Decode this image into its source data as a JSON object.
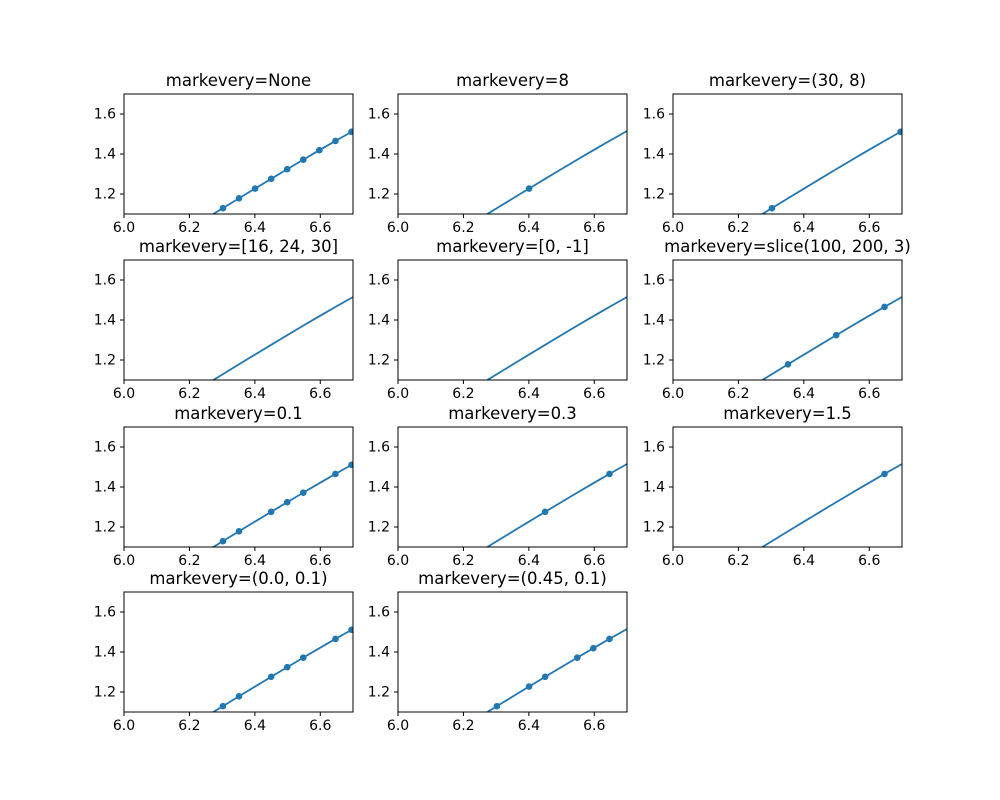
{
  "figure": {
    "background": "#ffffff",
    "axes_edge_color": "#000000",
    "text_color": "#000000"
  },
  "chart_data": {
    "type": "line",
    "description": "matplotlib markevery demo, zoomed view: same line plotted in 11 subplots with different markevery settings",
    "xlim": [
      6.0,
      6.7
    ],
    "ylim": [
      1.1,
      1.7
    ],
    "xticks": [
      6.0,
      6.2,
      6.4,
      6.6
    ],
    "yticks": [
      1.2,
      1.4,
      1.6
    ],
    "xtick_labels": [
      "6.0",
      "6.2",
      "6.4",
      "6.6"
    ],
    "ytick_labels": [
      "1.2",
      "1.4",
      "1.6"
    ],
    "grid": false,
    "legend": null,
    "line_color": "#1f77b4",
    "marker": "circle",
    "curve": [
      [
        6.25,
        1.0768
      ],
      [
        6.275,
        1.1018
      ],
      [
        6.3,
        1.1268
      ],
      [
        6.325,
        1.1518
      ],
      [
        6.35,
        1.1768
      ],
      [
        6.375,
        1.2017
      ],
      [
        6.4,
        1.2265
      ],
      [
        6.425,
        1.2513
      ],
      [
        6.45,
        1.276
      ],
      [
        6.475,
        1.3006
      ],
      [
        6.5,
        1.3251
      ],
      [
        6.525,
        1.3495
      ],
      [
        6.55,
        1.3737
      ],
      [
        6.575,
        1.3977
      ],
      [
        6.6,
        1.4215
      ],
      [
        6.625,
        1.4452
      ],
      [
        6.65,
        1.4687
      ],
      [
        6.675,
        1.4919
      ],
      [
        6.7,
        1.5149
      ]
    ],
    "subplots": [
      {
        "row": 0,
        "col": 0,
        "title": "markevery=None",
        "markers": [
          [
            6.3024,
            1.1292
          ],
          [
            6.3515,
            1.1783
          ],
          [
            6.4007,
            1.2272
          ],
          [
            6.4498,
            1.2758
          ],
          [
            6.4989,
            1.3241
          ],
          [
            6.5481,
            1.3718
          ],
          [
            6.5972,
            1.4189
          ],
          [
            6.6464,
            1.4653
          ],
          [
            6.6955,
            1.5108
          ]
        ]
      },
      {
        "row": 0,
        "col": 1,
        "title": "markevery=8",
        "markers": [
          [
            6.4007,
            1.2272
          ]
        ]
      },
      {
        "row": 0,
        "col": 2,
        "title": "markevery=(30, 8)",
        "markers": [
          [
            6.3024,
            1.1292
          ],
          [
            6.6955,
            1.5108
          ]
        ]
      },
      {
        "row": 1,
        "col": 0,
        "title": "markevery=[16, 24, 30]",
        "markers": []
      },
      {
        "row": 1,
        "col": 1,
        "title": "markevery=[0, -1]",
        "markers": []
      },
      {
        "row": 1,
        "col": 2,
        "title": "markevery=slice(100, 200, 3)",
        "markers": [
          [
            6.3515,
            1.1783
          ],
          [
            6.4989,
            1.3241
          ],
          [
            6.6464,
            1.4653
          ]
        ]
      },
      {
        "row": 2,
        "col": 0,
        "title": "markevery=0.1",
        "markers": [
          [
            6.3024,
            1.1292
          ],
          [
            6.3515,
            1.1783
          ],
          [
            6.4498,
            1.2758
          ],
          [
            6.4989,
            1.3241
          ],
          [
            6.5481,
            1.3718
          ],
          [
            6.6464,
            1.4653
          ],
          [
            6.6955,
            1.5108
          ]
        ]
      },
      {
        "row": 2,
        "col": 1,
        "title": "markevery=0.3",
        "markers": [
          [
            6.4498,
            1.2758
          ],
          [
            6.6464,
            1.4653
          ]
        ]
      },
      {
        "row": 2,
        "col": 2,
        "title": "markevery=1.5",
        "markers": [
          [
            6.6464,
            1.4653
          ]
        ]
      },
      {
        "row": 3,
        "col": 0,
        "title": "markevery=(0.0, 0.1)",
        "markers": [
          [
            6.3024,
            1.1292
          ],
          [
            6.3515,
            1.1783
          ],
          [
            6.4498,
            1.2758
          ],
          [
            6.4989,
            1.3241
          ],
          [
            6.5481,
            1.3718
          ],
          [
            6.6464,
            1.4653
          ],
          [
            6.6955,
            1.5108
          ]
        ]
      },
      {
        "row": 3,
        "col": 1,
        "title": "markevery=(0.45, 0.1)",
        "markers": [
          [
            6.3024,
            1.1292
          ],
          [
            6.4007,
            1.2272
          ],
          [
            6.4498,
            1.2758
          ],
          [
            6.5481,
            1.3718
          ],
          [
            6.5972,
            1.4189
          ],
          [
            6.6464,
            1.4653
          ]
        ]
      }
    ]
  }
}
